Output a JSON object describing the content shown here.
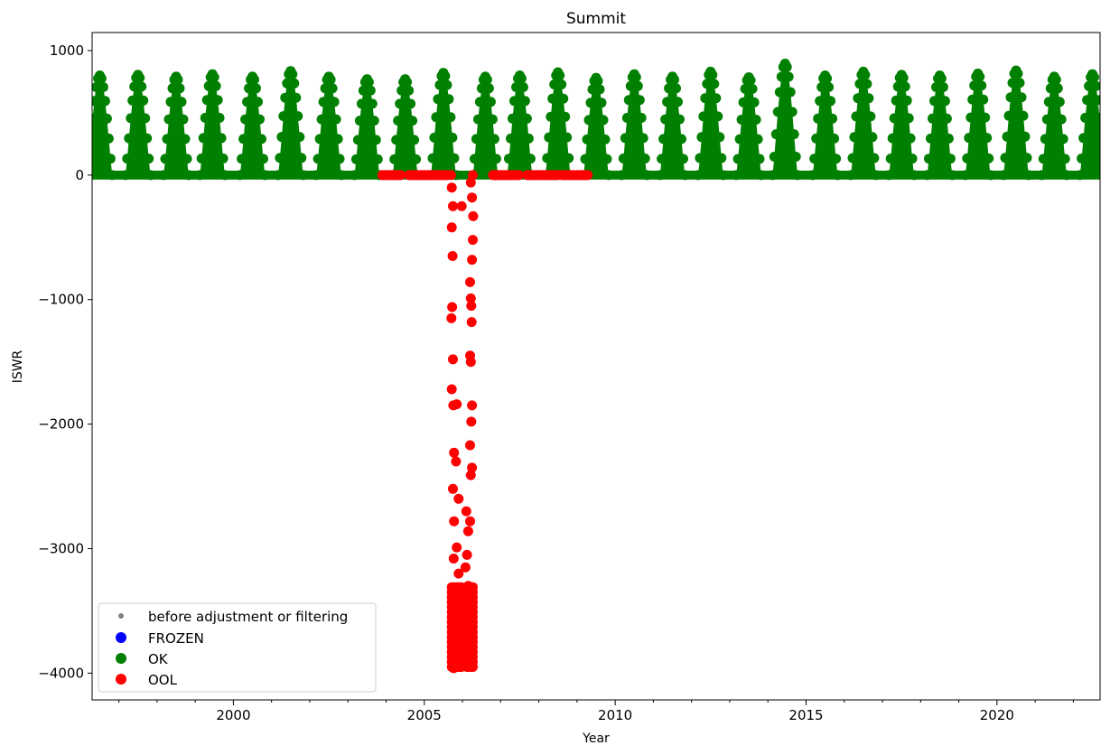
{
  "chart_data": {
    "type": "scatter",
    "title": "Summit",
    "xlabel": "Year",
    "ylabel": "ISWR",
    "xlim": [
      1996.3,
      2022.7
    ],
    "ylim": [
      -4215,
      1145
    ],
    "x_ticks": [
      2000,
      2005,
      2010,
      2015,
      2020
    ],
    "x_tick_labels": [
      "2000",
      "2005",
      "2010",
      "2015",
      "2020"
    ],
    "x_minor_step": 1,
    "y_ticks": [
      1000,
      0,
      -1000,
      -2000,
      -3000,
      -4000
    ],
    "y_tick_labels": [
      "1000",
      "0",
      "−1000",
      "−2000",
      "−3000",
      "−4000"
    ],
    "grid": false,
    "legend_position": "lower-left",
    "series": [
      {
        "name": "before adjustment or filtering",
        "color": "#808080",
        "marker": "small-dot",
        "points": []
      },
      {
        "name": "FROZEN",
        "color": "#0000ff",
        "marker": "dot",
        "points": []
      },
      {
        "name": "OK",
        "color": "#008000",
        "marker": "dot",
        "seasonal_cycle": {
          "description": "daily insolation cycle, summer peaks each year",
          "min": 0,
          "annual_peaks": [
            [
              1996.5,
              800
            ],
            [
              1997.5,
              805
            ],
            [
              1998.5,
              790
            ],
            [
              1999.45,
              810
            ],
            [
              2000.5,
              790
            ],
            [
              2001.5,
              835
            ],
            [
              2002.5,
              790
            ],
            [
              2003.5,
              770
            ],
            [
              2004.5,
              770
            ],
            [
              2005.5,
              820
            ],
            [
              2006.6,
              790
            ],
            [
              2007.5,
              800
            ],
            [
              2008.5,
              825
            ],
            [
              2009.5,
              780
            ],
            [
              2010.5,
              810
            ],
            [
              2011.5,
              790
            ],
            [
              2012.5,
              830
            ],
            [
              2013.5,
              785
            ],
            [
              2014.45,
              895
            ],
            [
              2015.5,
              800
            ],
            [
              2016.5,
              830
            ],
            [
              2017.5,
              805
            ],
            [
              2018.5,
              800
            ],
            [
              2019.5,
              815
            ],
            [
              2020.5,
              840
            ],
            [
              2021.5,
              790
            ],
            [
              2022.5,
              810
            ]
          ]
        }
      },
      {
        "name": "OOL",
        "color": "#ff0000",
        "marker": "dot",
        "zero_runs": [
          [
            2003.9,
            2004.4
          ],
          [
            2004.6,
            2005.6
          ],
          [
            2006.8,
            2007.5
          ],
          [
            2007.7,
            2008.5
          ],
          [
            2008.6,
            2009.3
          ]
        ],
        "points": [
          [
            2005.7,
            0
          ],
          [
            2005.72,
            -100
          ],
          [
            2005.75,
            -250
          ],
          [
            2005.72,
            -420
          ],
          [
            2005.74,
            -650
          ],
          [
            2005.73,
            -1060
          ],
          [
            2005.71,
            -1150
          ],
          [
            2005.75,
            -1480
          ],
          [
            2005.72,
            -1720
          ],
          [
            2005.76,
            -1850
          ],
          [
            2005.85,
            -1840
          ],
          [
            2005.78,
            -2230
          ],
          [
            2005.83,
            -2300
          ],
          [
            2005.75,
            -2520
          ],
          [
            2005.9,
            -2600
          ],
          [
            2005.78,
            -2780
          ],
          [
            2005.85,
            -2990
          ],
          [
            2005.77,
            -3080
          ],
          [
            2005.9,
            -3200
          ],
          [
            2005.79,
            -3330
          ],
          [
            2005.82,
            -3500
          ],
          [
            2005.86,
            -3650
          ],
          [
            2005.8,
            -3750
          ],
          [
            2005.9,
            -3800
          ],
          [
            2005.78,
            -3850
          ],
          [
            2005.85,
            -3900
          ],
          [
            2005.77,
            -3960
          ],
          [
            2005.95,
            -3700
          ],
          [
            2005.98,
            -3820
          ],
          [
            2006.02,
            -3600
          ],
          [
            2006.05,
            -3400
          ],
          [
            2006.08,
            -3150
          ],
          [
            2006.1,
            -2700
          ],
          [
            2006.12,
            -3050
          ],
          [
            2006.15,
            -3300
          ],
          [
            2006.18,
            -3600
          ],
          [
            2006.2,
            -3800
          ],
          [
            2006.22,
            -3900
          ],
          [
            2006.24,
            -3500
          ],
          [
            2006.15,
            -2860
          ],
          [
            2006.2,
            -2780
          ],
          [
            2006.22,
            -2410
          ],
          [
            2006.25,
            -2350
          ],
          [
            2006.2,
            -2170
          ],
          [
            2006.23,
            -1980
          ],
          [
            2006.25,
            -1850
          ],
          [
            2006.22,
            -1500
          ],
          [
            2006.2,
            -1450
          ],
          [
            2006.24,
            -1180
          ],
          [
            2006.23,
            -1050
          ],
          [
            2006.22,
            -990
          ],
          [
            2006.2,
            -860
          ],
          [
            2006.25,
            -680
          ],
          [
            2006.27,
            -520
          ],
          [
            2006.28,
            -330
          ],
          [
            2006.25,
            -180
          ],
          [
            2006.22,
            -60
          ],
          [
            2006.27,
            0
          ],
          [
            2005.98,
            -250
          ],
          [
            2006.05,
            -3900
          ]
        ]
      }
    ]
  }
}
